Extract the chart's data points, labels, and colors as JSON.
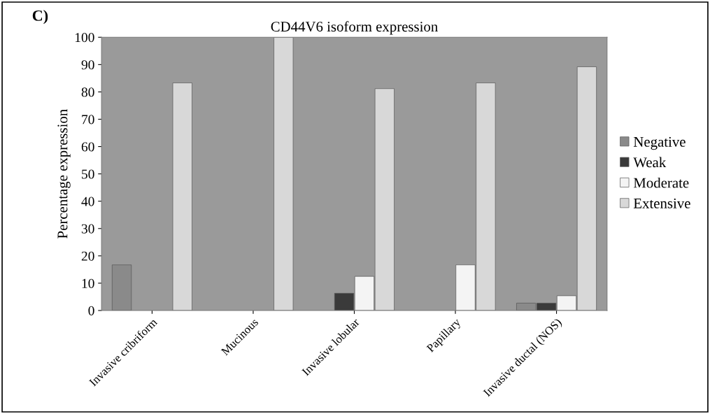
{
  "chart_data": {
    "type": "bar",
    "title": "CD44V6 isoform expression",
    "ylabel": "Percentage expression",
    "annotations": [
      "C)"
    ],
    "categories": [
      "Invasive cribriform",
      "Mucinous",
      "Invasive lobular",
      "Papillary",
      "Invasive ductal (NOS)"
    ],
    "series": [
      {
        "name": "Negative",
        "color": "#8a8a8a",
        "values": [
          16.7,
          0,
          0,
          0,
          2.7
        ]
      },
      {
        "name": "Weak",
        "color": "#3a3a3a",
        "values": [
          0,
          0,
          6.3,
          0,
          2.7
        ]
      },
      {
        "name": "Moderate",
        "color": "#f4f4f4",
        "values": [
          0,
          0,
          12.5,
          16.7,
          5.4
        ]
      },
      {
        "name": "Extensive",
        "color": "#d8d8d8",
        "values": [
          83.3,
          100,
          81.2,
          83.3,
          89.2
        ]
      }
    ],
    "ylim": [
      0,
      100
    ],
    "yticks": [
      0,
      10,
      20,
      30,
      40,
      50,
      60,
      70,
      80,
      90,
      100
    ],
    "grid": false,
    "legend": "right"
  }
}
